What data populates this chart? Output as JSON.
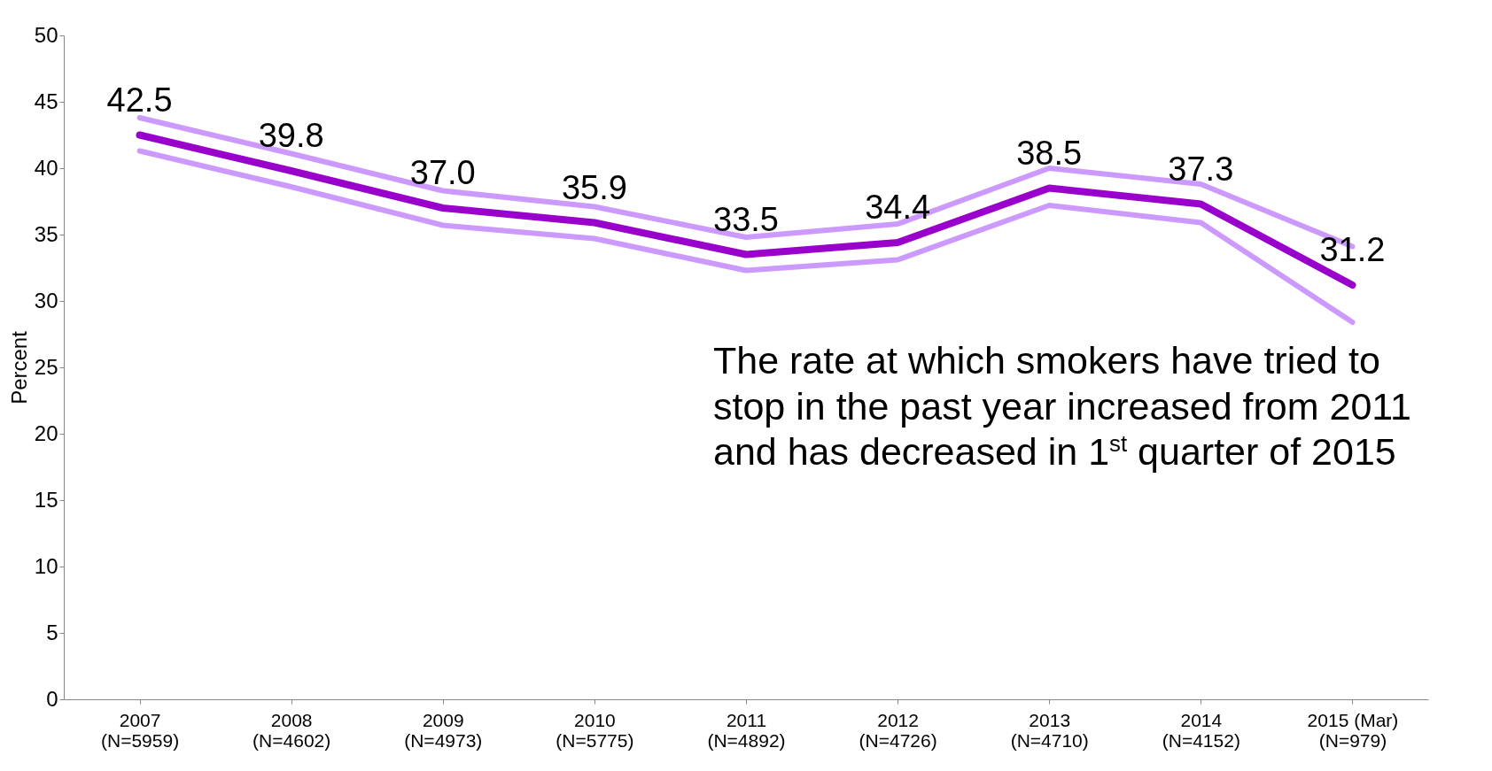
{
  "chart_data": {
    "type": "line",
    "ylabel": "Percent",
    "categories": [
      "2007\n(N=5959)",
      "2008\n(N=4602)",
      "2009\n(N=4973)",
      "2010\n(N=5775)",
      "2011\n(N=4892)",
      "2012\n(N=4726)",
      "2013\n(N=4710)",
      "2014\n(N=4152)",
      "2015 (Mar)\n(N=979)"
    ],
    "series": [
      {
        "color": "#cc99ff",
        "values": [
          43.8,
          41.1,
          38.3,
          37.1,
          34.8,
          35.8,
          40.0,
          38.8,
          34.1
        ]
      },
      {
        "color": "#cc99ff",
        "values": [
          41.3,
          38.6,
          35.7,
          34.7,
          32.3,
          33.1,
          37.2,
          35.9,
          28.4
        ]
      },
      {
        "color": "#9900cc",
        "values": [
          42.5,
          39.8,
          37.0,
          35.9,
          33.5,
          34.4,
          38.5,
          37.3,
          31.2
        ],
        "value_labels": [
          "42.5",
          "39.8",
          "37.0",
          "35.9",
          "33.5",
          "34.4",
          "38.5",
          "37.3",
          "31.2"
        ]
      }
    ],
    "ylim": [
      0,
      50
    ],
    "yticks": [
      0,
      5,
      10,
      15,
      20,
      25,
      30,
      35,
      40,
      45,
      50
    ],
    "grid": false,
    "annotations": [
      "The rate at which smokers have tried to stop in the past year increased from 2011 and has decreased in 1$^{st}$ quarter of 2015"
    ]
  }
}
